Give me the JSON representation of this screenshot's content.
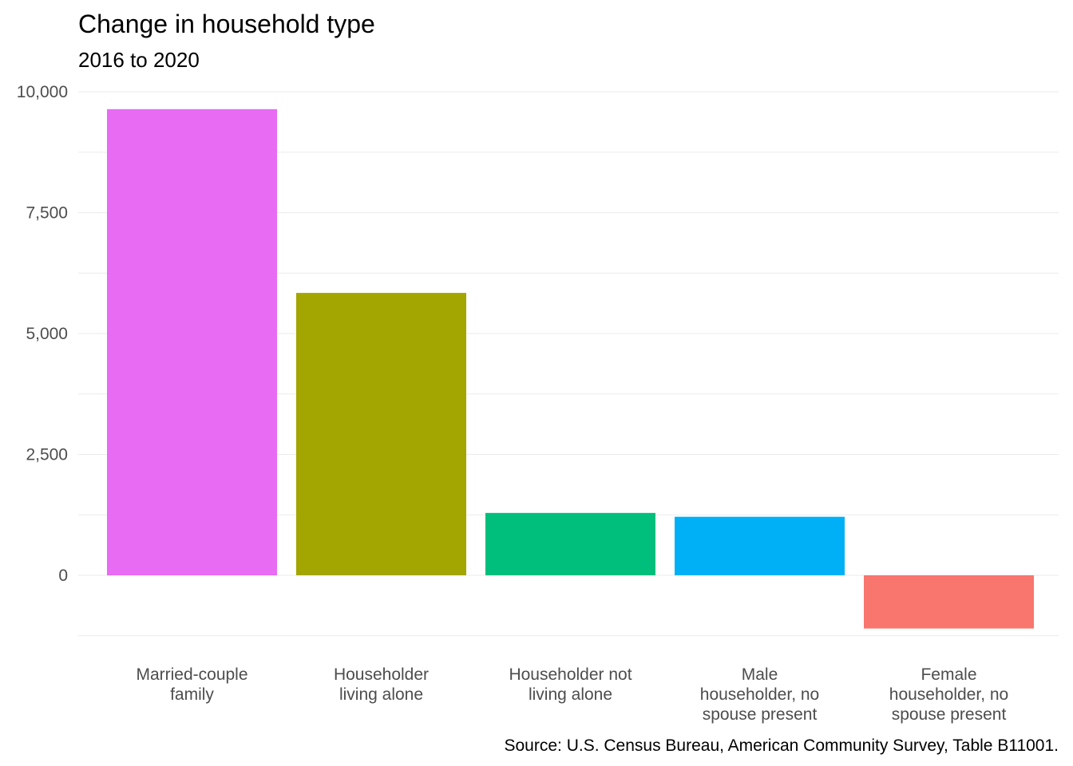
{
  "chart_data": {
    "type": "bar",
    "title": "Change in household type",
    "subtitle": "2016 to 2020",
    "caption": "Source: U.S. Census Bureau, American Community Survey, Table B11001.",
    "xlabel": "",
    "ylabel": "",
    "ylim": [
      -1250,
      10000
    ],
    "yticks": [
      0,
      2500,
      5000,
      7500,
      10000
    ],
    "ytick_labels": [
      "0",
      "2,500",
      "5,000",
      "7,500",
      "10,000"
    ],
    "grid": true,
    "legend": "none",
    "categories": [
      "Married-couple family",
      "Householder living alone",
      "Householder not living alone",
      "Male householder, no spouse present",
      "Female householder, no spouse present"
    ],
    "category_label_lines": [
      [
        "Married-couple",
        "family"
      ],
      [
        "Householder",
        "living alone"
      ],
      [
        "Householder not",
        "living alone"
      ],
      [
        "Male",
        "householder, no",
        "spouse present"
      ],
      [
        "Female",
        "householder, no",
        "spouse present"
      ]
    ],
    "values": [
      9640,
      5840,
      1290,
      1210,
      -1100
    ],
    "colors": [
      "#E76BF3",
      "#A3A500",
      "#00BF7D",
      "#00B0F6",
      "#F8766D"
    ]
  }
}
